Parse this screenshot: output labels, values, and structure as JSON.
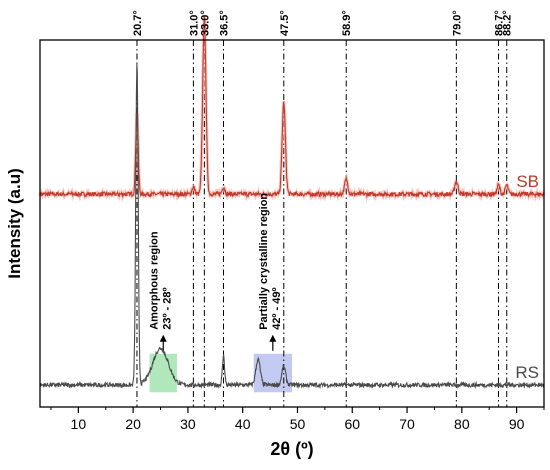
{
  "chart_data": {
    "type": "line",
    "title": "",
    "xlabel": "2θ (º)",
    "ylabel": "Intensity (a.u)",
    "xlim": [
      3,
      95
    ],
    "x_ticks": [
      10,
      20,
      30,
      40,
      50,
      60,
      70,
      80,
      90
    ],
    "y_ticks": "none",
    "grid": false,
    "reference_lines": [
      {
        "x": 20.7,
        "label": "20.7°"
      },
      {
        "x": 31.0,
        "label": "31.0°"
      },
      {
        "x": 33.0,
        "label": "33.0°"
      },
      {
        "x": 36.5,
        "label": "36.5°"
      },
      {
        "x": 47.5,
        "label": "47.5°"
      },
      {
        "x": 58.9,
        "label": "58.9°"
      },
      {
        "x": 79.0,
        "label": "79.0°"
      },
      {
        "x": 86.7,
        "label": "86.7°"
      },
      {
        "x": 88.2,
        "label": "88.2°"
      }
    ],
    "series": [
      {
        "name": "SB",
        "color": "#c0392b",
        "baseline": 0.58,
        "peaks": [
          {
            "x": 20.7,
            "height": 0.22,
            "width": 0.22
          },
          {
            "x": 31.0,
            "height": 0.02,
            "width": 0.25
          },
          {
            "x": 33.0,
            "height": 0.48,
            "width": 0.3
          },
          {
            "x": 36.5,
            "height": 0.02,
            "width": 0.25
          },
          {
            "x": 47.5,
            "height": 0.25,
            "width": 0.3
          },
          {
            "x": 58.9,
            "height": 0.04,
            "width": 0.3
          },
          {
            "x": 79.0,
            "height": 0.035,
            "width": 0.3
          },
          {
            "x": 86.7,
            "height": 0.025,
            "width": 0.25
          },
          {
            "x": 88.2,
            "height": 0.025,
            "width": 0.25
          }
        ]
      },
      {
        "name": "RS",
        "color": "#4a4a4a",
        "baseline": 0.06,
        "peaks": [
          {
            "x": 20.7,
            "height": 0.88,
            "width": 0.22
          },
          {
            "x": 25.0,
            "height": 0.1,
            "width": 1.4
          },
          {
            "x": 36.5,
            "height": 0.08,
            "width": 0.2
          },
          {
            "x": 42.8,
            "height": 0.07,
            "width": 0.4
          },
          {
            "x": 47.5,
            "height": 0.05,
            "width": 0.35
          }
        ]
      }
    ],
    "annotations": [
      {
        "text": "Amorphous region",
        "range_text": "23º - 28º",
        "x_range": [
          23,
          28
        ],
        "color": "#7bd88f"
      },
      {
        "text": "Partially crystalline region",
        "range_text": "42º - 49º",
        "x_range": [
          42,
          49
        ],
        "color": "#9aa6ea"
      }
    ]
  }
}
